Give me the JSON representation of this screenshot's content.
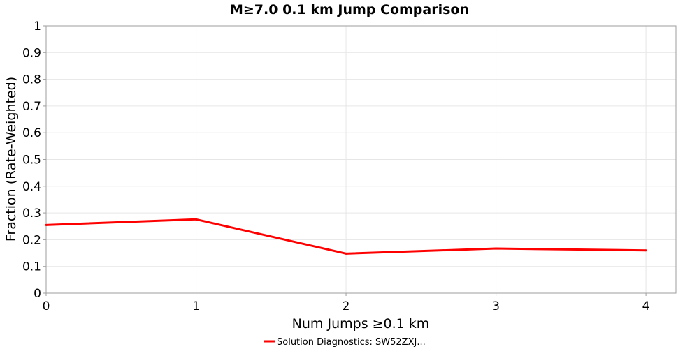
{
  "chart_data": {
    "type": "line",
    "title": "M≥7.0 0.1 km Jump Comparison",
    "xlabel": "Num Jumps ≥0.1 km",
    "ylabel": "Fraction (Rate-Weighted)",
    "x": [
      0,
      1,
      2,
      3,
      4
    ],
    "xlim": [
      0,
      4.2
    ],
    "ylim": [
      0,
      1
    ],
    "xticks": [
      "0",
      "1",
      "2",
      "3",
      "4"
    ],
    "yticks": [
      "0",
      "0.1",
      "0.2",
      "0.3",
      "0.4",
      "0.5",
      "0.6",
      "0.7",
      "0.8",
      "0.9",
      "1"
    ],
    "grid": true,
    "legend_position": "bottom",
    "series": [
      {
        "name": "Solution Diagnostics: SW52ZXJ...",
        "color": "#ff0000",
        "values": [
          0.255,
          0.276,
          0.148,
          0.167,
          0.16
        ]
      }
    ]
  }
}
